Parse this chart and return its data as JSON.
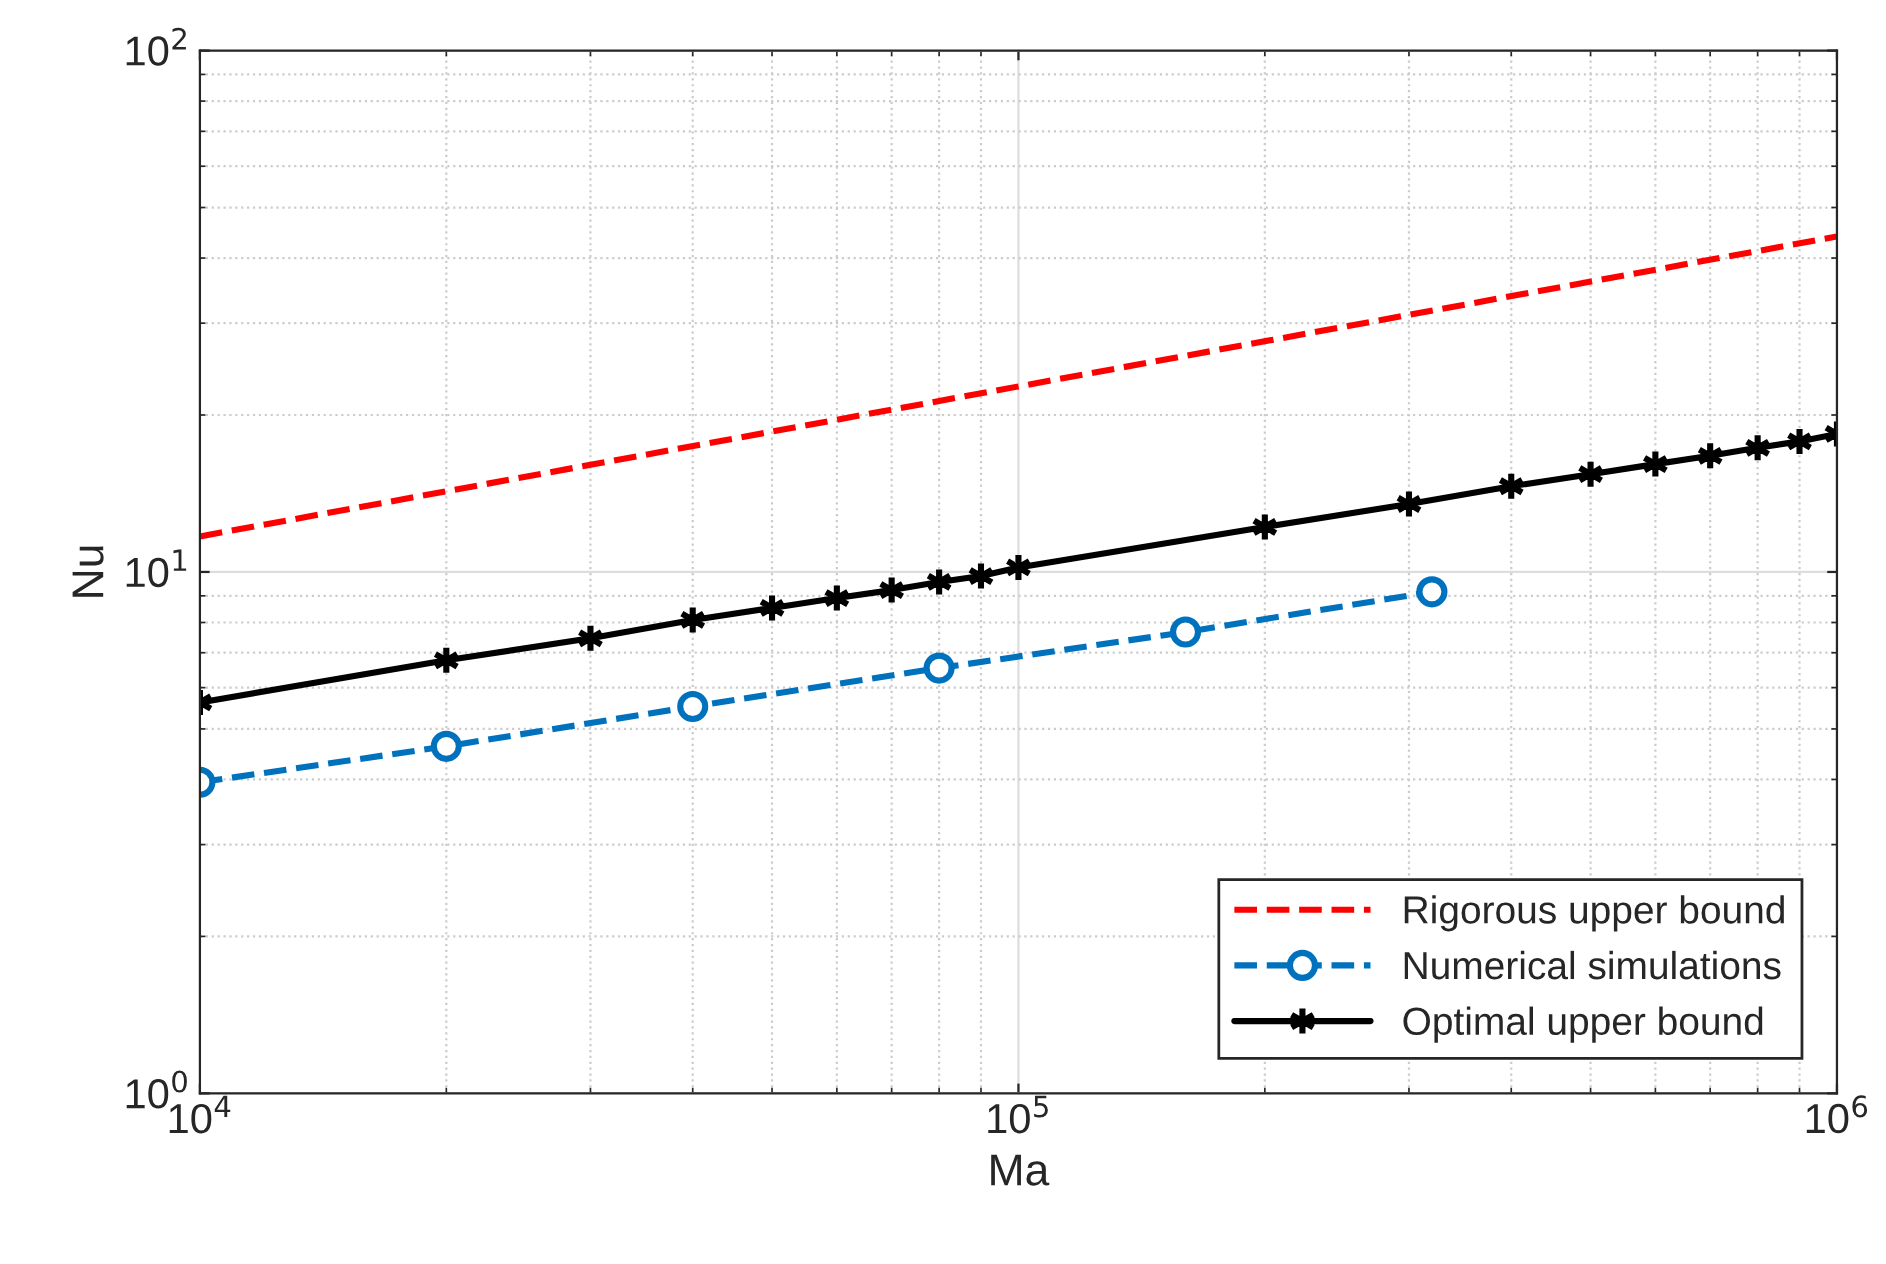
{
  "chart_data": {
    "type": "line",
    "xlabel": "Ma",
    "ylabel": "Nu",
    "log": "xy",
    "xlim": [
      10000,
      1000000
    ],
    "ylim": [
      1,
      100
    ],
    "xticks": [
      {
        "value": 10000,
        "label": "10$^{4}$"
      },
      {
        "value": 100000,
        "label": "10$^{5}$"
      },
      {
        "value": 1000000,
        "label": "10$^{6}$"
      }
    ],
    "yticks": [
      {
        "value": 1,
        "label": "10$^{0}$"
      },
      {
        "value": 10,
        "label": "10$^{1}$"
      },
      {
        "value": 100,
        "label": "10$^{2}$"
      }
    ],
    "grid": true,
    "legend": "bottom right",
    "series": [
      {
        "name": "Rigorous upper bound",
        "color": "#ff0000",
        "line_style": "dashed",
        "marker": "none",
        "x": [
          10000,
          1000000
        ],
        "values": [
          11.7,
          44
        ]
      },
      {
        "name": "Numerical simulations",
        "color": "#0072bd",
        "line_style": "dashed",
        "marker": "circle",
        "x": [
          10000,
          20000,
          40000,
          80000,
          160000,
          320000
        ],
        "values": [
          3.95,
          4.63,
          5.52,
          6.54,
          7.67,
          9.16
        ]
      },
      {
        "name": "Optimal upper bound",
        "color": "#000000",
        "line_style": "solid",
        "marker": "cross",
        "x": [
          10000,
          20000,
          30000,
          40000,
          50000,
          60000,
          70000,
          80000,
          90000,
          100000,
          200000,
          300000,
          400000,
          500000,
          600000,
          700000,
          800000,
          900000,
          1000000
        ],
        "values": [
          5.62,
          6.77,
          7.46,
          8.09,
          8.53,
          8.91,
          9.23,
          9.57,
          9.82,
          10.2,
          12.2,
          13.5,
          14.6,
          15.4,
          16.1,
          16.7,
          17.3,
          17.8,
          18.4
        ]
      }
    ]
  }
}
